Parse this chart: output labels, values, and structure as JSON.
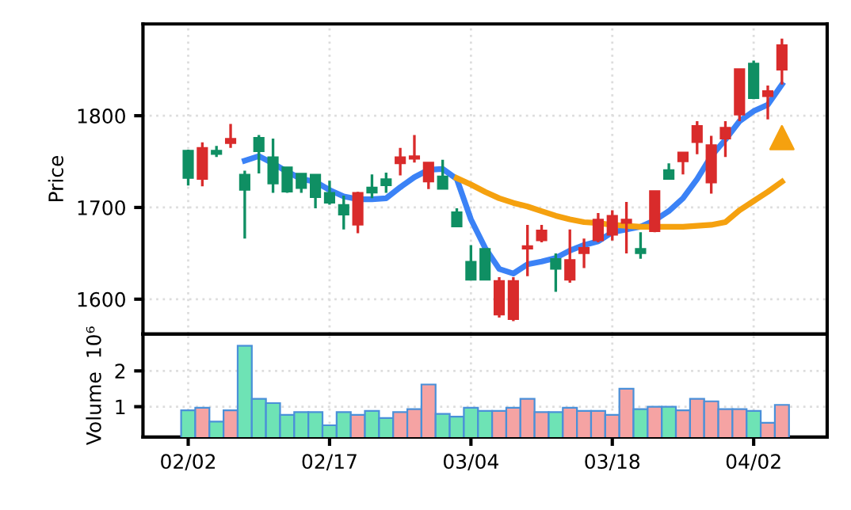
{
  "chart_data": [
    {
      "type": "candlestick",
      "ylabel": "Price",
      "categories": [
        null,
        null,
        null,
        null,
        null,
        null,
        null,
        null,
        null,
        null,
        null,
        null,
        null,
        null,
        null,
        null,
        null,
        null,
        null,
        null,
        null,
        null,
        null,
        null,
        null,
        null,
        null,
        null,
        null,
        null,
        null,
        null,
        null,
        null,
        null,
        null,
        null,
        null,
        null,
        null,
        null,
        null,
        null
      ],
      "ohlc": [
        [
          1762,
          1763,
          1724,
          1732
        ],
        [
          1731,
          1771,
          1723,
          1765
        ],
        [
          1762,
          1767,
          1755,
          1758
        ],
        [
          1770,
          1791,
          1765,
          1775
        ],
        [
          1736,
          1740,
          1666,
          1719
        ],
        [
          1776,
          1779,
          1737,
          1761
        ],
        [
          1755,
          1775,
          1716,
          1726
        ],
        [
          1744,
          1744,
          1716,
          1717
        ],
        [
          1737,
          1737,
          1716,
          1721
        ],
        [
          1736,
          1736,
          1699,
          1711
        ],
        [
          1716,
          1729,
          1703,
          1705
        ],
        [
          1703,
          1713,
          1676,
          1692
        ],
        [
          1681,
          1717,
          1672,
          1716
        ],
        [
          1722,
          1736,
          1710,
          1716
        ],
        [
          1731,
          1738,
          1716,
          1724
        ],
        [
          1748,
          1765,
          1735,
          1755
        ],
        [
          1753,
          1779,
          1749,
          1756
        ],
        [
          1728,
          1749,
          1720,
          1749
        ],
        [
          1734,
          1752,
          1720,
          1720
        ],
        [
          1695,
          1699,
          1679,
          1679
        ],
        [
          1641,
          1659,
          1621,
          1621
        ],
        [
          1655,
          1655,
          1621,
          1621
        ],
        [
          1583,
          1624,
          1580,
          1620
        ],
        [
          1578,
          1624,
          1576,
          1620
        ],
        [
          1655,
          1681,
          1625,
          1658
        ],
        [
          1664,
          1681,
          1662,
          1675
        ],
        [
          1644,
          1650,
          1608,
          1633
        ],
        [
          1621,
          1676,
          1618,
          1643
        ],
        [
          1650,
          1666,
          1634,
          1656
        ],
        [
          1664,
          1694,
          1662,
          1687
        ],
        [
          1670,
          1697,
          1664,
          1691
        ],
        [
          1683,
          1706,
          1650,
          1687
        ],
        [
          1655,
          1673,
          1644,
          1650
        ],
        [
          1674,
          1718,
          1673,
          1718
        ],
        [
          1741,
          1748,
          1731,
          1731
        ],
        [
          1750,
          1760,
          1736,
          1760
        ],
        [
          1771,
          1794,
          1758,
          1789
        ],
        [
          1727,
          1778,
          1715,
          1768
        ],
        [
          1775,
          1794,
          1755,
          1787
        ],
        [
          1801,
          1851,
          1794,
          1851
        ],
        [
          1857,
          1860,
          1818,
          1819
        ],
        [
          1821,
          1833,
          1796,
          1827
        ],
        [
          1850,
          1884,
          1834,
          1877
        ]
      ],
      "colors": [
        "#0f8f63",
        "#d92b2b",
        "#0f8f63",
        "#d92b2b",
        "#0f8f63",
        "#0f8f63",
        "#0f8f63",
        "#0f8f63",
        "#0f8f63",
        "#0f8f63",
        "#0f8f63",
        "#0f8f63",
        "#d92b2b",
        "#0f8f63",
        "#0f8f63",
        "#d92b2b",
        "#d92b2b",
        "#d92b2b",
        "#0f8f63",
        "#0f8f63",
        "#0f8f63",
        "#0f8f63",
        "#d92b2b",
        "#d92b2b",
        "#d92b2b",
        "#d92b2b",
        "#0f8f63",
        "#d92b2b",
        "#d92b2b",
        "#d92b2b",
        "#d92b2b",
        "#d92b2b",
        "#0f8f63",
        "#d92b2b",
        "#0f8f63",
        "#d92b2b",
        "#d92b2b",
        "#d92b2b",
        "#d92b2b",
        "#d92b2b",
        "#0f8f63",
        "#d92b2b",
        "#d92b2b"
      ],
      "series": [
        {
          "type": "line",
          "color": "#3b82f6",
          "values": [
            null,
            null,
            null,
            null,
            1751,
            1756,
            1748,
            1739,
            1731,
            1728,
            1719,
            1712,
            1709,
            1709,
            1710,
            1722,
            1733,
            1741,
            1742,
            1731,
            1687,
            1656,
            1633,
            1628,
            1638,
            1641,
            1645,
            1653,
            1659,
            1663,
            1673,
            1676,
            1679,
            1686,
            1696,
            1710,
            1731,
            1756,
            1774,
            1794,
            1805,
            1812,
            1834
          ]
        },
        {
          "type": "line",
          "color": "#f5a10f",
          "values": [
            null,
            null,
            null,
            null,
            null,
            null,
            null,
            null,
            null,
            null,
            null,
            null,
            null,
            null,
            null,
            null,
            null,
            null,
            null,
            1732,
            1725,
            1717,
            1710,
            1705,
            1701,
            1696,
            1691,
            1687,
            1684,
            1683,
            1681,
            1680,
            1679,
            1679,
            1679,
            1679,
            1680,
            1681,
            1684,
            1697,
            1707,
            1717,
            1728
          ]
        },
        {
          "type": "scatter",
          "marker": "triangle",
          "color": "#f5a10f",
          "values": [
            null,
            null,
            null,
            null,
            null,
            null,
            null,
            null,
            null,
            null,
            null,
            null,
            null,
            null,
            null,
            null,
            null,
            null,
            null,
            null,
            null,
            null,
            null,
            null,
            null,
            null,
            null,
            null,
            null,
            null,
            null,
            null,
            null,
            null,
            null,
            null,
            null,
            null,
            null,
            null,
            null,
            null,
            1776
          ]
        }
      ],
      "ylim": [
        1562,
        1900
      ],
      "yticks": [
        1600,
        1700,
        1800
      ],
      "grid": true
    },
    {
      "type": "bar",
      "ylabel": "Volume  10⁶",
      "categories": [
        "02/02",
        null,
        null,
        null,
        null,
        null,
        null,
        null,
        null,
        null,
        "02/17",
        null,
        null,
        null,
        null,
        null,
        null,
        null,
        null,
        null,
        "03/04",
        null,
        null,
        null,
        null,
        null,
        null,
        null,
        null,
        null,
        "03/18",
        null,
        null,
        null,
        null,
        null,
        null,
        null,
        null,
        null,
        "04/02",
        null,
        null
      ],
      "values": [
        0.9,
        0.97,
        0.58,
        0.9,
        2.7,
        1.22,
        1.1,
        0.77,
        0.85,
        0.85,
        0.48,
        0.85,
        0.77,
        0.88,
        0.68,
        0.85,
        0.93,
        1.62,
        0.8,
        0.72,
        0.97,
        0.88,
        0.88,
        0.97,
        1.22,
        0.85,
        0.85,
        0.97,
        0.88,
        0.88,
        0.77,
        1.5,
        0.93,
        1.0,
        1.0,
        0.9,
        1.22,
        1.15,
        0.93,
        0.93,
        0.88,
        0.55,
        1.05
      ],
      "colors": [
        "#6ee3b5",
        "#f5a3a3",
        "#6ee3b5",
        "#f5a3a3",
        "#6ee3b5",
        "#6ee3b5",
        "#6ee3b5",
        "#6ee3b5",
        "#6ee3b5",
        "#6ee3b5",
        "#6ee3b5",
        "#6ee3b5",
        "#f5a3a3",
        "#6ee3b5",
        "#6ee3b5",
        "#f5a3a3",
        "#f5a3a3",
        "#f5a3a3",
        "#6ee3b5",
        "#6ee3b5",
        "#6ee3b5",
        "#6ee3b5",
        "#f5a3a3",
        "#f5a3a3",
        "#f5a3a3",
        "#f5a3a3",
        "#6ee3b5",
        "#f5a3a3",
        "#f5a3a3",
        "#f5a3a3",
        "#f5a3a3",
        "#f5a3a3",
        "#6ee3b5",
        "#f5a3a3",
        "#6ee3b5",
        "#f5a3a3",
        "#f5a3a3",
        "#f5a3a3",
        "#f5a3a3",
        "#f5a3a3",
        "#6ee3b5",
        "#f5a3a3",
        "#f5a3a3"
      ],
      "ylim": [
        0.15,
        3.03
      ],
      "yticks": [
        1,
        2
      ],
      "grid": true
    }
  ]
}
